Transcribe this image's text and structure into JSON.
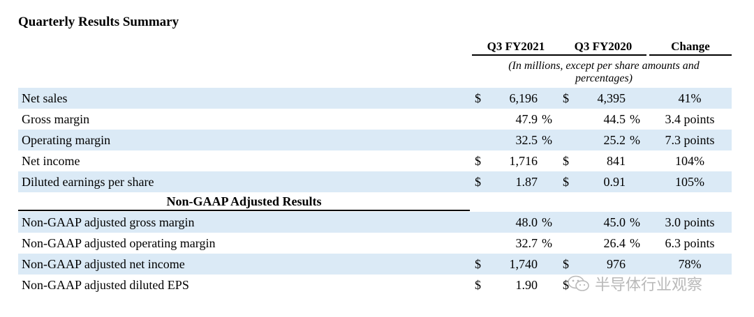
{
  "title": "Quarterly Results Summary",
  "columns": {
    "col1": "Q3 FY2021",
    "col2": "Q3 FY2020",
    "col3": "Change"
  },
  "subheader": "(In millions, except per share amounts and percentages)",
  "rows": [
    {
      "label": "Net sales",
      "cur1": "$",
      "val1": "6,196",
      "pct1": "",
      "cur2": "$",
      "val2": "4,395",
      "pct2": "",
      "change": "41%"
    },
    {
      "label": "Gross margin",
      "cur1": "",
      "val1": "47.9",
      "pct1": "%",
      "cur2": "",
      "val2": "44.5",
      "pct2": "%",
      "change": "3.4 points"
    },
    {
      "label": "Operating margin",
      "cur1": "",
      "val1": "32.5",
      "pct1": "%",
      "cur2": "",
      "val2": "25.2",
      "pct2": "%",
      "change": "7.3 points"
    },
    {
      "label": "Net income",
      "cur1": "$",
      "val1": "1,716",
      "pct1": "",
      "cur2": "$",
      "val2": "841",
      "pct2": "",
      "change": "104%"
    },
    {
      "label": "Diluted earnings per share",
      "cur1": "$",
      "val1": "1.87",
      "pct1": "",
      "cur2": "$",
      "val2": "0.91",
      "pct2": "",
      "change": "105%"
    }
  ],
  "nongaap_title": "Non-GAAP Adjusted Results",
  "nongaap_rows": [
    {
      "label": "Non-GAAP adjusted gross margin",
      "cur1": "",
      "val1": "48.0",
      "pct1": "%",
      "cur2": "",
      "val2": "45.0",
      "pct2": "%",
      "change": "3.0 points"
    },
    {
      "label": "Non-GAAP adjusted operating margin",
      "cur1": "",
      "val1": "32.7",
      "pct1": "%",
      "cur2": "",
      "val2": "26.4",
      "pct2": "%",
      "change": "6.3 points"
    },
    {
      "label": "Non-GAAP adjusted net income",
      "cur1": "$",
      "val1": "1,740",
      "pct1": "",
      "cur2": "$",
      "val2": "976",
      "pct2": "",
      "change": "78%"
    },
    {
      "label": "Non-GAAP adjusted diluted EPS",
      "cur1": "$",
      "val1": "1.90",
      "pct1": "",
      "cur2": "$",
      "val2": "",
      "pct2": "",
      "change": ""
    }
  ],
  "watermark": {
    "text": "半导体行业观察",
    "icon": "wechat-icon"
  },
  "colors": {
    "row_shade": "#dbeaf6",
    "watermark": "#b9b9b9"
  }
}
